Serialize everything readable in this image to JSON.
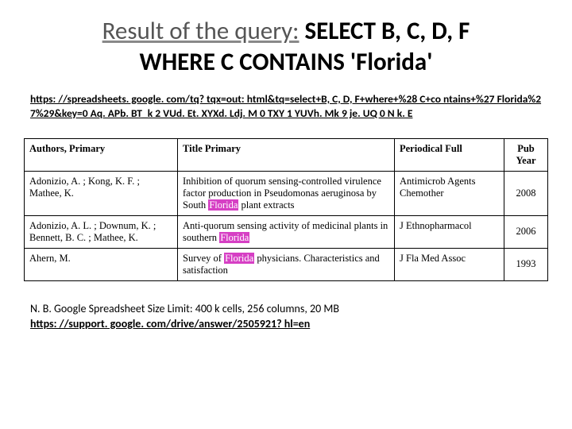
{
  "title": {
    "prefix": "Result of the query:",
    "query_line1": " SELECT B, C, D, F",
    "query_line2": "WHERE C CONTAINS 'Florida'"
  },
  "url": "https: //spreadsheets. google. com/tq? tqx=out: html&tq=select+B, C, D, F+where+%28 C+co ntains+%27 Florida%27%29&key=0 Aq. APb. BT_k 2 VUd. Et. XYXd. Ldj. M 0 TXY 1 YUVh. Mk 9 je. UQ 0 N k. E",
  "table": {
    "columns": [
      "Authors, Primary",
      "Title Primary",
      "Periodical Full",
      "Pub Year"
    ],
    "rows": [
      {
        "authors": "Adonizio, A. ; Kong, K. F. ; Mathee, K.",
        "title_pre": "Inhibition of quorum sensing-controlled virulence factor production in Pseudomonas aeruginosa by South ",
        "title_hl": "Florida",
        "title_post": " plant extracts",
        "periodical": "Antimicrob Agents Chemother",
        "year": "2008"
      },
      {
        "authors": "Adonizio, A. L. ; Downum, K. ; Bennett, B. C. ; Mathee, K.",
        "title_pre": "Anti-quorum sensing activity of medicinal plants in southern ",
        "title_hl": "Florida",
        "title_post": "",
        "periodical": "J Ethnopharmacol",
        "year": "2006"
      },
      {
        "authors": "Ahern, M.",
        "title_pre": "Survey of ",
        "title_hl": "Florida",
        "title_post": " physicians. Characteristics and satisfaction",
        "periodical": "J Fla Med Assoc",
        "year": "1993"
      }
    ]
  },
  "footnote": {
    "line1": "N. B. Google Spreadsheet Size Limit: 400 k cells, 256 columns, 20 MB",
    "link": "https: //support. google. com/drive/answer/2505921? hl=en"
  }
}
